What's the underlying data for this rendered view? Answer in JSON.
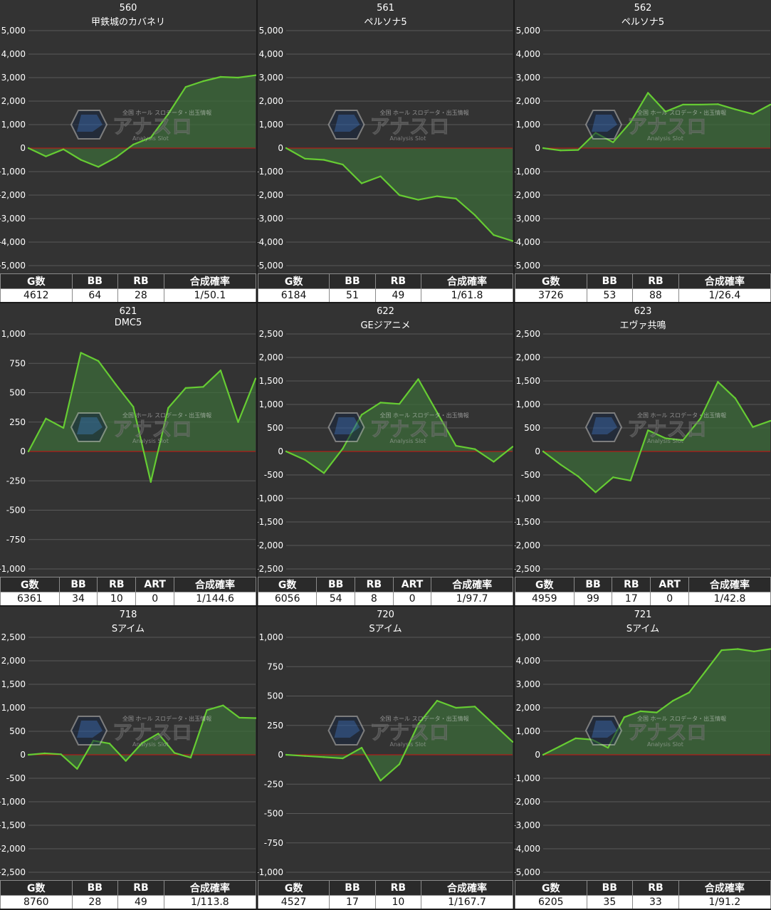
{
  "colors": {
    "panel_bg": "#333333",
    "grid_line": "#5a5a5a",
    "zero_line": "#cc1111",
    "series_line": "#66cc33",
    "series_fill": "#3c6b3a",
    "watermark_blue": "#2a5aa0"
  },
  "watermark": {
    "brand": "アナスロ",
    "tagline": "全国 ホール スロデータ・出玉情報",
    "subtitle": "Analysis Slot"
  },
  "panels": [
    {
      "machine_no": "560",
      "machine_name": "甲鉄城のカバネリ",
      "columns": [
        "G数",
        "BB",
        "RB",
        "合成確率"
      ],
      "values": [
        "4612",
        "64",
        "28",
        "1/50.1"
      ]
    },
    {
      "machine_no": "561",
      "machine_name": "ペルソナ5",
      "columns": [
        "G数",
        "BB",
        "RB",
        "合成確率"
      ],
      "values": [
        "6184",
        "51",
        "49",
        "1/61.8"
      ]
    },
    {
      "machine_no": "562",
      "machine_name": "ペルソナ5",
      "columns": [
        "G数",
        "BB",
        "RB",
        "合成確率"
      ],
      "values": [
        "3726",
        "53",
        "88",
        "1/26.4"
      ]
    },
    {
      "machine_no": "621",
      "machine_name": "DMC5",
      "columns": [
        "G数",
        "BB",
        "RB",
        "ART",
        "合成確率"
      ],
      "values": [
        "6361",
        "34",
        "10",
        "0",
        "1/144.6"
      ]
    },
    {
      "machine_no": "622",
      "machine_name": "GEジアニメ",
      "columns": [
        "G数",
        "BB",
        "RB",
        "ART",
        "合成確率"
      ],
      "values": [
        "6056",
        "54",
        "8",
        "0",
        "1/97.7"
      ]
    },
    {
      "machine_no": "623",
      "machine_name": "エヴァ共鳴",
      "columns": [
        "G数",
        "BB",
        "RB",
        "ART",
        "合成確率"
      ],
      "values": [
        "4959",
        "99",
        "17",
        "0",
        "1/42.8"
      ]
    },
    {
      "machine_no": "718",
      "machine_name": "Sアイム",
      "columns": [
        "G数",
        "BB",
        "RB",
        "合成確率"
      ],
      "values": [
        "8760",
        "28",
        "49",
        "1/113.8"
      ]
    },
    {
      "machine_no": "720",
      "machine_name": "Sアイム",
      "columns": [
        "G数",
        "BB",
        "RB",
        "合成確率"
      ],
      "values": [
        "4527",
        "17",
        "10",
        "1/167.7"
      ]
    },
    {
      "machine_no": "721",
      "machine_name": "Sアイム",
      "columns": [
        "G数",
        "BB",
        "RB",
        "合成確率"
      ],
      "values": [
        "6205",
        "35",
        "33",
        "1/91.2"
      ]
    }
  ],
  "chart_data": [
    {
      "type": "area",
      "ylim": [
        -5000,
        5000
      ],
      "yticks": [
        "5,000",
        "4,000",
        "3,000",
        "2,000",
        "1,000",
        "0",
        "-1,000",
        "-2,000",
        "-3,000",
        "-4,000",
        "-5,000"
      ],
      "values": [
        0,
        -350,
        -50,
        -500,
        -800,
        -400,
        150,
        450,
        1450,
        2600,
        2850,
        3030,
        3000,
        3100
      ]
    },
    {
      "type": "area",
      "ylim": [
        -5000,
        5000
      ],
      "yticks": [
        "5,000",
        "4,000",
        "3,000",
        "2,000",
        "1,000",
        "0",
        "-1,000",
        "-2,000",
        "-3,000",
        "-4,000",
        "-5,000"
      ],
      "values": [
        0,
        -450,
        -500,
        -700,
        -1500,
        -1200,
        -2000,
        -2200,
        -2050,
        -2150,
        -2850,
        -3700,
        -3950
      ]
    },
    {
      "type": "area",
      "ylim": [
        -5000,
        5000
      ],
      "yticks": [
        "5,000",
        "4,000",
        "3,000",
        "2,000",
        "1,000",
        "0",
        "-1,000",
        "-2,000",
        "-3,000",
        "-4,000",
        "-5,000"
      ],
      "values": [
        0,
        -100,
        -80,
        650,
        250,
        1100,
        2350,
        1550,
        1850,
        1850,
        1870,
        1650,
        1450,
        1850
      ]
    },
    {
      "type": "area",
      "ylim": [
        -1000,
        1000
      ],
      "yticks": [
        "1,000",
        "750",
        "500",
        "250",
        "0",
        "-250",
        "-500",
        "-750",
        "-1,000"
      ],
      "values": [
        0,
        280,
        200,
        840,
        770,
        570,
        380,
        -260,
        370,
        540,
        550,
        690,
        250,
        620
      ]
    },
    {
      "type": "area",
      "ylim": [
        -2500,
        2500
      ],
      "yticks": [
        "2,500",
        "2,000",
        "1,500",
        "1,000",
        "500",
        "0",
        "-500",
        "-1,000",
        "-1,500",
        "-2,000",
        "-2,500"
      ],
      "values": [
        0,
        -180,
        -460,
        60,
        780,
        1040,
        1010,
        1540,
        830,
        120,
        50,
        -220,
        100
      ]
    },
    {
      "type": "area",
      "ylim": [
        -2500,
        2500
      ],
      "yticks": [
        "2,500",
        "2,000",
        "1,500",
        "1,000",
        "500",
        "0",
        "-500",
        "-1,000",
        "-1,500",
        "-2,000",
        "-2,500"
      ],
      "values": [
        0,
        -280,
        -530,
        -870,
        -550,
        -620,
        450,
        280,
        240,
        700,
        1480,
        1130,
        520,
        650
      ]
    },
    {
      "type": "area",
      "ylim": [
        -2500,
        2500
      ],
      "yticks": [
        "2,500",
        "2,000",
        "1,500",
        "1,000",
        "500",
        "0",
        "-500",
        "-1,000",
        "-1,500",
        "-2,000",
        "-2,500"
      ],
      "values": [
        0,
        30,
        10,
        -300,
        300,
        240,
        -130,
        250,
        450,
        40,
        -60,
        950,
        1050,
        790,
        780
      ]
    },
    {
      "type": "area",
      "ylim": [
        -1000,
        1000
      ],
      "yticks": [
        "1,000",
        "750",
        "500",
        "250",
        "0",
        "-250",
        "-500",
        "-750",
        "-1,000"
      ],
      "values": [
        0,
        -10,
        -20,
        -30,
        60,
        -220,
        -80,
        260,
        460,
        400,
        410,
        260,
        110
      ]
    },
    {
      "type": "area",
      "ylim": [
        -5000,
        5000
      ],
      "yticks": [
        "5,000",
        "4,000",
        "3,000",
        "2,000",
        "1,000",
        "0",
        "-1,000",
        "-2,000",
        "-3,000",
        "-4,000",
        "-5,000"
      ],
      "values": [
        0,
        350,
        700,
        650,
        300,
        1600,
        1850,
        1800,
        2300,
        2650,
        3550,
        4450,
        4500,
        4400,
        4500
      ]
    }
  ]
}
